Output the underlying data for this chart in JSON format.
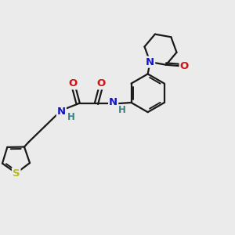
{
  "background_color": "#ebebeb",
  "bond_color": "#1a1a1a",
  "bond_width": 1.6,
  "atom_colors": {
    "N": "#1414cc",
    "O": "#cc1414",
    "S": "#b8b820",
    "H": "#3d8080",
    "C": "#1a1a1a"
  },
  "font_size_atom": 9.5,
  "font_size_H": 8.5
}
